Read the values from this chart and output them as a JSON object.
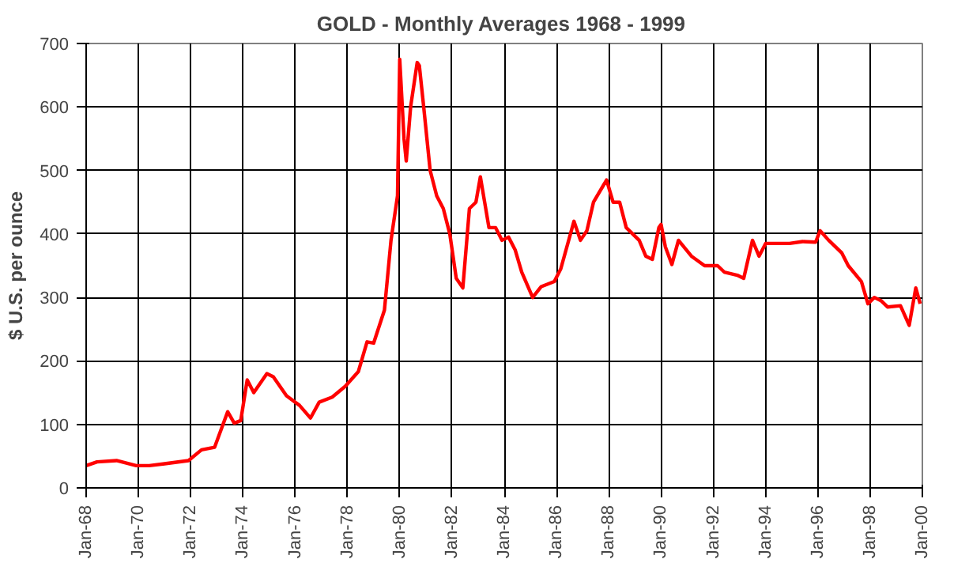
{
  "chart_data": {
    "type": "line",
    "title": "GOLD - Monthly Averages  1968 - 1999",
    "ylabel": "$ U.S. per ounce",
    "x": [
      "1968-01",
      "1968-06",
      "1969-03",
      "1969-12",
      "1970-06",
      "1971-01",
      "1971-12",
      "1972-06",
      "1972-12",
      "1973-06",
      "1973-09",
      "1973-12",
      "1974-03",
      "1974-06",
      "1974-12",
      "1975-03",
      "1975-09",
      "1976-03",
      "1976-08",
      "1976-12",
      "1977-06",
      "1977-12",
      "1978-06",
      "1978-10",
      "1979-01",
      "1979-06",
      "1979-09",
      "1979-12",
      "1980-01",
      "1980-03",
      "1980-04",
      "1980-06",
      "1980-09",
      "1980-10",
      "1980-12",
      "1981-03",
      "1981-06",
      "1981-09",
      "1981-12",
      "1982-03",
      "1982-06",
      "1982-09",
      "1982-12",
      "1983-02",
      "1983-06",
      "1983-09",
      "1983-12",
      "1984-03",
      "1984-06",
      "1984-09",
      "1985-02",
      "1985-06",
      "1985-12",
      "1986-03",
      "1986-09",
      "1986-12",
      "1987-03",
      "1987-06",
      "1987-12",
      "1988-03",
      "1988-06",
      "1988-09",
      "1989-03",
      "1989-06",
      "1989-09",
      "1989-12",
      "1990-01",
      "1990-03",
      "1990-06",
      "1990-09",
      "1991-03",
      "1991-09",
      "1992-03",
      "1992-06",
      "1992-12",
      "1993-03",
      "1993-07",
      "1993-10",
      "1994-01",
      "1994-06",
      "1994-12",
      "1995-06",
      "1995-12",
      "1996-02",
      "1996-06",
      "1996-12",
      "1997-03",
      "1997-09",
      "1997-12",
      "1998-03",
      "1998-06",
      "1998-09",
      "1999-03",
      "1999-07",
      "1999-10",
      "1999-12"
    ],
    "series": [
      {
        "color": "#ff0000",
        "values": [
          35,
          41,
          43,
          35,
          35,
          38,
          43,
          60,
          64,
          120,
          102,
          106,
          170,
          150,
          180,
          175,
          145,
          130,
          110,
          135,
          143,
          160,
          183,
          230,
          228,
          280,
          390,
          460,
          675,
          550,
          515,
          600,
          670,
          665,
          600,
          500,
          460,
          440,
          400,
          330,
          315,
          440,
          450,
          490,
          410,
          410,
          390,
          395,
          375,
          340,
          300,
          317,
          325,
          345,
          420,
          390,
          405,
          450,
          485,
          450,
          450,
          410,
          390,
          365,
          360,
          410,
          415,
          380,
          352,
          390,
          365,
          350,
          350,
          340,
          335,
          330,
          390,
          365,
          385,
          385,
          385,
          388,
          387,
          405,
          390,
          370,
          350,
          325,
          290,
          300,
          295,
          285,
          287,
          256,
          315,
          290
        ]
      }
    ],
    "xlim": [
      "1968-01",
      "2000-01"
    ],
    "xticks": [
      {
        "value": "1968-01",
        "label": "Jan-68"
      },
      {
        "value": "1970-01",
        "label": "Jan-70"
      },
      {
        "value": "1972-01",
        "label": "Jan-72"
      },
      {
        "value": "1974-01",
        "label": "Jan-74"
      },
      {
        "value": "1976-01",
        "label": "Jan-76"
      },
      {
        "value": "1978-01",
        "label": "Jan-78"
      },
      {
        "value": "1980-01",
        "label": "Jan-80"
      },
      {
        "value": "1982-01",
        "label": "Jan-82"
      },
      {
        "value": "1984-01",
        "label": "Jan-84"
      },
      {
        "value": "1986-01",
        "label": "Jan-86"
      },
      {
        "value": "1988-01",
        "label": "Jan-88"
      },
      {
        "value": "1990-01",
        "label": "Jan-90"
      },
      {
        "value": "1992-01",
        "label": "Jan-92"
      },
      {
        "value": "1994-01",
        "label": "Jan-94"
      },
      {
        "value": "1996-01",
        "label": "Jan-96"
      },
      {
        "value": "1998-01",
        "label": "Jan-98"
      },
      {
        "value": "2000-01",
        "label": "Jan-00"
      }
    ],
    "ylim": [
      0,
      700
    ],
    "yticks": [
      0,
      100,
      200,
      300,
      400,
      500,
      600,
      700
    ],
    "grid": true,
    "marker": "none",
    "line_style": "solid"
  }
}
